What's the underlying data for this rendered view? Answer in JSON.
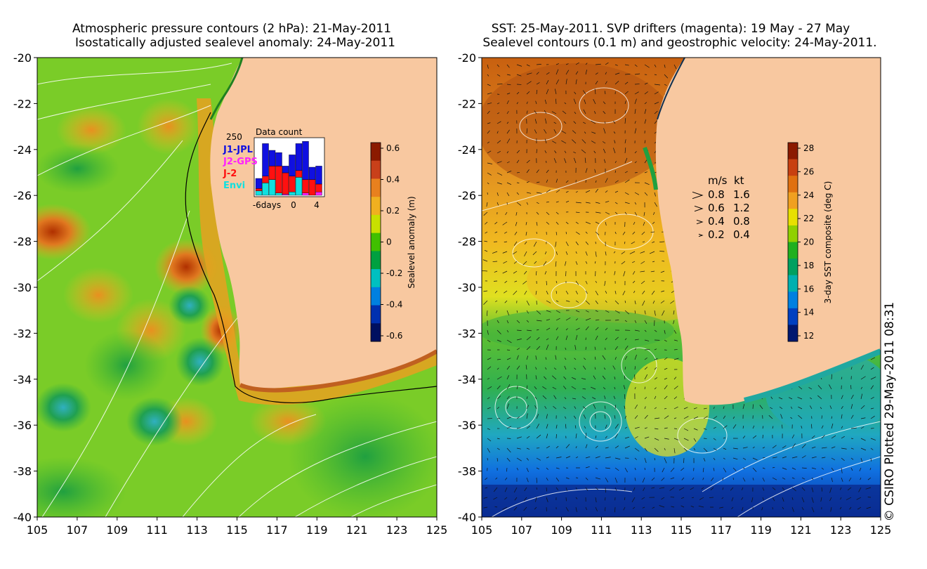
{
  "left_panel": {
    "title_line1": "Atmospheric pressure contours (2 hPa): 21-May-2011",
    "title_line2": "Isostatically adjusted sealevel anomaly: 24-May-2011",
    "x_ticks": [
      "105",
      "107",
      "109",
      "111",
      "113",
      "115",
      "117",
      "119",
      "121",
      "123",
      "125"
    ],
    "y_ticks": [
      "-20",
      "-22",
      "-24",
      "-26",
      "-28",
      "-30",
      "-32",
      "-34",
      "-36",
      "-38",
      "-40"
    ],
    "colorbar": {
      "label": "Sealevel anomaly (m)",
      "ticks": [
        "0.6",
        "0.4",
        "0.2",
        "0",
        "-0.2",
        "-0.4",
        "-0.6"
      ],
      "colors": [
        "#8b1a00",
        "#c8401a",
        "#e8801e",
        "#f0b020",
        "#c8e000",
        "#40c000",
        "#00a040",
        "#00c0c0",
        "#0080e0",
        "#0030b0",
        "#001060"
      ]
    },
    "inset": {
      "title": "Data count",
      "y_top_label": "250",
      "x_labels": [
        "-6days",
        "0",
        "4"
      ],
      "legend": [
        {
          "label": "J1-JPL",
          "color": "#1010e0"
        },
        {
          "label": "J2-GPS",
          "color": "#ff20ff"
        },
        {
          "label": "J-2",
          "color": "#ff1010"
        },
        {
          "label": "Envi",
          "color": "#10e0e0"
        }
      ],
      "bars": [
        {
          "day": "-7",
          "stack": [
            {
              "sat": "Envi",
              "count": 20
            },
            {
              "sat": "J-2",
              "count": 10
            },
            {
              "sat": "J1-JPL",
              "count": 45
            }
          ]
        },
        {
          "day": "-6",
          "stack": [
            {
              "sat": "Envi",
              "count": 55
            },
            {
              "sat": "J-2",
              "count": 30
            },
            {
              "sat": "J1-JPL",
              "count": 145
            }
          ]
        },
        {
          "day": "-5",
          "stack": [
            {
              "sat": "Envi",
              "count": 70
            },
            {
              "sat": "J-2",
              "count": 60
            },
            {
              "sat": "J1-JPL",
              "count": 70
            }
          ]
        },
        {
          "day": "-4",
          "stack": [
            {
              "sat": "Envi",
              "count": 10
            },
            {
              "sat": "J-2",
              "count": 120
            },
            {
              "sat": "J1-JPL",
              "count": 60
            }
          ]
        },
        {
          "day": "-3",
          "stack": [
            {
              "sat": "J2-GPS",
              "count": 5
            },
            {
              "sat": "J-2",
              "count": 95
            },
            {
              "sat": "J1-JPL",
              "count": 30
            }
          ]
        },
        {
          "day": "-2",
          "stack": [
            {
              "sat": "Envi",
              "count": 15
            },
            {
              "sat": "J-2",
              "count": 70
            },
            {
              "sat": "J1-JPL",
              "count": 95
            }
          ]
        },
        {
          "day": "-1",
          "stack": [
            {
              "sat": "Envi",
              "count": 80
            },
            {
              "sat": "J-2",
              "count": 30
            },
            {
              "sat": "J1-JPL",
              "count": 120
            }
          ]
        },
        {
          "day": "0",
          "stack": [
            {
              "sat": "J2-GPS",
              "count": 10
            },
            {
              "sat": "J-2",
              "count": 60
            },
            {
              "sat": "J1-JPL",
              "count": 170
            }
          ]
        },
        {
          "day": "1",
          "stack": [
            {
              "sat": "J-2",
              "count": 70
            },
            {
              "sat": "J1-JPL",
              "count": 55
            }
          ]
        },
        {
          "day": "2",
          "stack": [
            {
              "sat": "J2-GPS",
              "count": 15
            },
            {
              "sat": "J-2",
              "count": 35
            },
            {
              "sat": "J1-JPL",
              "count": 80
            }
          ]
        }
      ]
    }
  },
  "right_panel": {
    "title_line1": "SST: 25-May-2011. SVP drifters (magenta): 19 May - 27 May",
    "title_line2": "Sealevel contours (0.1 m) and geostrophic velocity: 24-May-2011.",
    "x_ticks": [
      "105",
      "107",
      "109",
      "111",
      "113",
      "115",
      "117",
      "119",
      "121",
      "123",
      "125"
    ],
    "y_ticks": [
      "-20",
      "-22",
      "-24",
      "-26",
      "-28",
      "-30",
      "-32",
      "-34",
      "-36",
      "-38",
      "-40"
    ],
    "colorbar": {
      "label": "3-day SST composite (deg C)",
      "ticks": [
        "28",
        "26",
        "24",
        "22",
        "20",
        "18",
        "16",
        "14",
        "12"
      ],
      "colors": [
        "#8b1a00",
        "#c84010",
        "#e07010",
        "#f0a020",
        "#e8e000",
        "#90d000",
        "#20b020",
        "#00a060",
        "#00b0b0",
        "#0080e0",
        "#0040c0",
        "#001870"
      ]
    },
    "velocity_legend": {
      "header_ms": "m/s",
      "header_kt": "kt",
      "rows": [
        {
          "ms": "0.8",
          "kt": "1.6"
        },
        {
          "ms": "0.6",
          "kt": "1.2"
        },
        {
          "ms": "0.4",
          "kt": "0.8"
        },
        {
          "ms": "0.2",
          "kt": "0.4"
        }
      ]
    }
  },
  "credit": "© CSIRO Plotted 29-May-2011 08:31",
  "colors": {
    "land": "#f8c8a0",
    "background": "#ffffff"
  }
}
